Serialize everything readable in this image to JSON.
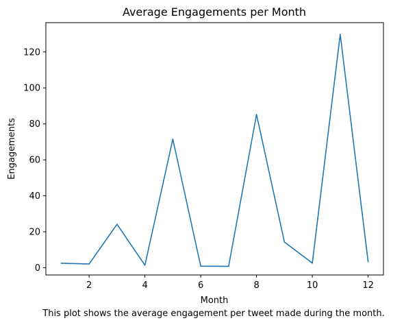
{
  "chart_data": {
    "type": "line",
    "title": "Average Engagements per Month",
    "xlabel": "Month",
    "ylabel": "Engagements",
    "caption": "This plot shows the average engagement per tweet made during the month.",
    "x": [
      1,
      2,
      3,
      4,
      5,
      6,
      7,
      8,
      9,
      10,
      11,
      12
    ],
    "series": [
      {
        "values": [
          2.5,
          2.1,
          24.2,
          1.4,
          71.5,
          0.9,
          0.8,
          85.2,
          14.3,
          2.6,
          129.8,
          3.4
        ]
      }
    ],
    "xlim": [
      0.45,
      12.55
    ],
    "ylim": [
      -4.0,
      136.3
    ],
    "xticks": [
      2,
      4,
      6,
      8,
      10,
      12
    ],
    "yticks": [
      0,
      20,
      40,
      60,
      80,
      100,
      120
    ],
    "grid": false,
    "line_color": "#1f77b4"
  }
}
